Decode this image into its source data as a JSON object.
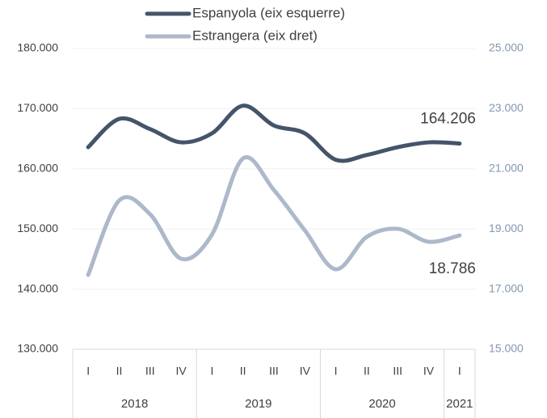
{
  "chart_data": {
    "type": "line",
    "groups": [
      {
        "label": "2018",
        "categories": [
          "I",
          "II",
          "III",
          "IV"
        ]
      },
      {
        "label": "2019",
        "categories": [
          "I",
          "II",
          "III",
          "IV"
        ]
      },
      {
        "label": "2020",
        "categories": [
          "I",
          "II",
          "III",
          "IV"
        ]
      },
      {
        "label": "2021",
        "categories": [
          "I"
        ]
      }
    ],
    "series": [
      {
        "name": "Espanyola (eix esquerre)",
        "color": "#44546a",
        "values": [
          163600,
          168300,
          166600,
          164400,
          165900,
          170500,
          167200,
          165900,
          161500,
          162300,
          163600,
          164400,
          164206
        ],
        "value_labels": [
          null,
          null,
          null,
          null,
          null,
          null,
          null,
          null,
          null,
          null,
          null,
          null,
          "164.206"
        ]
      },
      {
        "name": "Estrangera (eix dret)",
        "color": "#adb9ca",
        "axis": "y2",
        "values": [
          17473,
          19946,
          19489,
          18011,
          18817,
          21344,
          20296,
          18951,
          17661,
          18736,
          19005,
          18575,
          18786
        ],
        "value_labels": [
          null,
          null,
          null,
          null,
          null,
          null,
          null,
          null,
          null,
          null,
          null,
          null,
          "18.786"
        ]
      }
    ],
    "ylim": [
      130000,
      180000
    ],
    "yticks": [
      {
        "value": 130000,
        "label": "130.000"
      },
      {
        "value": 140000,
        "label": "140.000"
      },
      {
        "value": 150000,
        "label": "150.000"
      },
      {
        "value": 160000,
        "label": "160.000"
      },
      {
        "value": 170000,
        "label": "170.000"
      },
      {
        "value": 180000,
        "label": "180.000"
      }
    ],
    "y2lim": [
      15000,
      25000
    ],
    "y2ticks": [
      {
        "value": 15000,
        "label": "15.000"
      },
      {
        "value": 17000,
        "label": "17.000"
      },
      {
        "value": 19000,
        "label": "19.000"
      },
      {
        "value": 21000,
        "label": "21.000"
      },
      {
        "value": 23000,
        "label": "23.000"
      },
      {
        "value": 25000,
        "label": "25.000"
      }
    ],
    "grid": true,
    "legend": "top"
  }
}
